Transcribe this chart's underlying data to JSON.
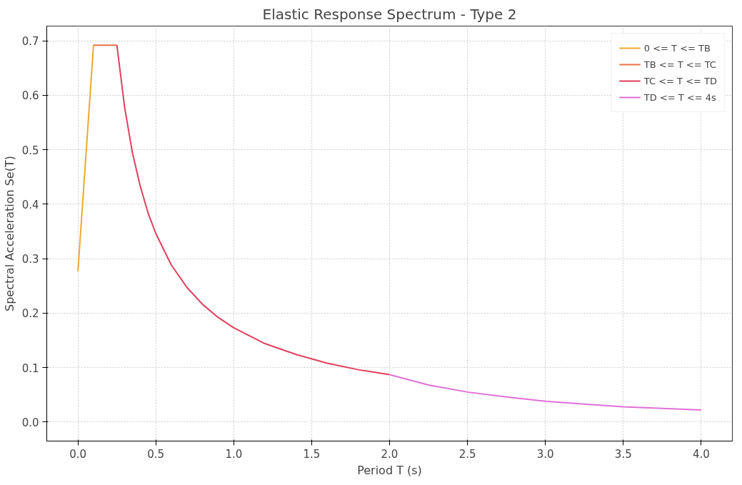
{
  "chart_data": {
    "type": "line",
    "title": "Elastic Response Spectrum - Type 2",
    "xlabel": "Period T (s)",
    "ylabel": "Spectral Acceleration Se(T)",
    "series": [
      {
        "name": "0 <= T <= TB",
        "color": "#f0a830",
        "x": [
          0,
          0.1
        ],
        "values": [
          0.277,
          0.692
        ]
      },
      {
        "name": "TB <= T <= TC",
        "color": "#f07048",
        "x": [
          0.1,
          0.25
        ],
        "values": [
          0.692,
          0.692
        ]
      },
      {
        "name": "TC <= T <= TD",
        "color": "#e0405e",
        "x": [
          0.25,
          0.3,
          0.35,
          0.4,
          0.45,
          0.5,
          0.6,
          0.7,
          0.8,
          0.9,
          1.0,
          1.2,
          1.4,
          1.6,
          1.8,
          2.0
        ],
        "values": [
          0.692,
          0.577,
          0.494,
          0.433,
          0.384,
          0.346,
          0.288,
          0.247,
          0.216,
          0.192,
          0.173,
          0.144,
          0.124,
          0.108,
          0.096,
          0.087
        ]
      },
      {
        "name": "TD <= T <= 4s",
        "color": "#e070d8",
        "x": [
          2.0,
          2.25,
          2.5,
          2.75,
          3.0,
          3.25,
          3.5,
          3.75,
          4.0
        ],
        "values": [
          0.087,
          0.068,
          0.055,
          0.046,
          0.038,
          0.033,
          0.028,
          0.025,
          0.022
        ]
      }
    ],
    "xlim": [
      -0.2,
      4.2
    ],
    "ylim": [
      -0.035,
      0.727
    ],
    "xticks": [
      {
        "value": 0,
        "label": "0.0"
      },
      0.5,
      {
        "value": 1,
        "label": "1.0"
      },
      1.5,
      {
        "value": 2,
        "label": "2.0"
      },
      2.5,
      {
        "value": 3,
        "label": "3.0"
      },
      3.5,
      {
        "value": 4,
        "label": "4.0"
      }
    ],
    "yticks": [
      {
        "value": 0,
        "label": "0.0"
      },
      0.1,
      0.2,
      0.3,
      0.4,
      0.5,
      0.6,
      0.7
    ],
    "grid": true,
    "legend": "top right",
    "line_style": "solid",
    "marker": "none"
  }
}
